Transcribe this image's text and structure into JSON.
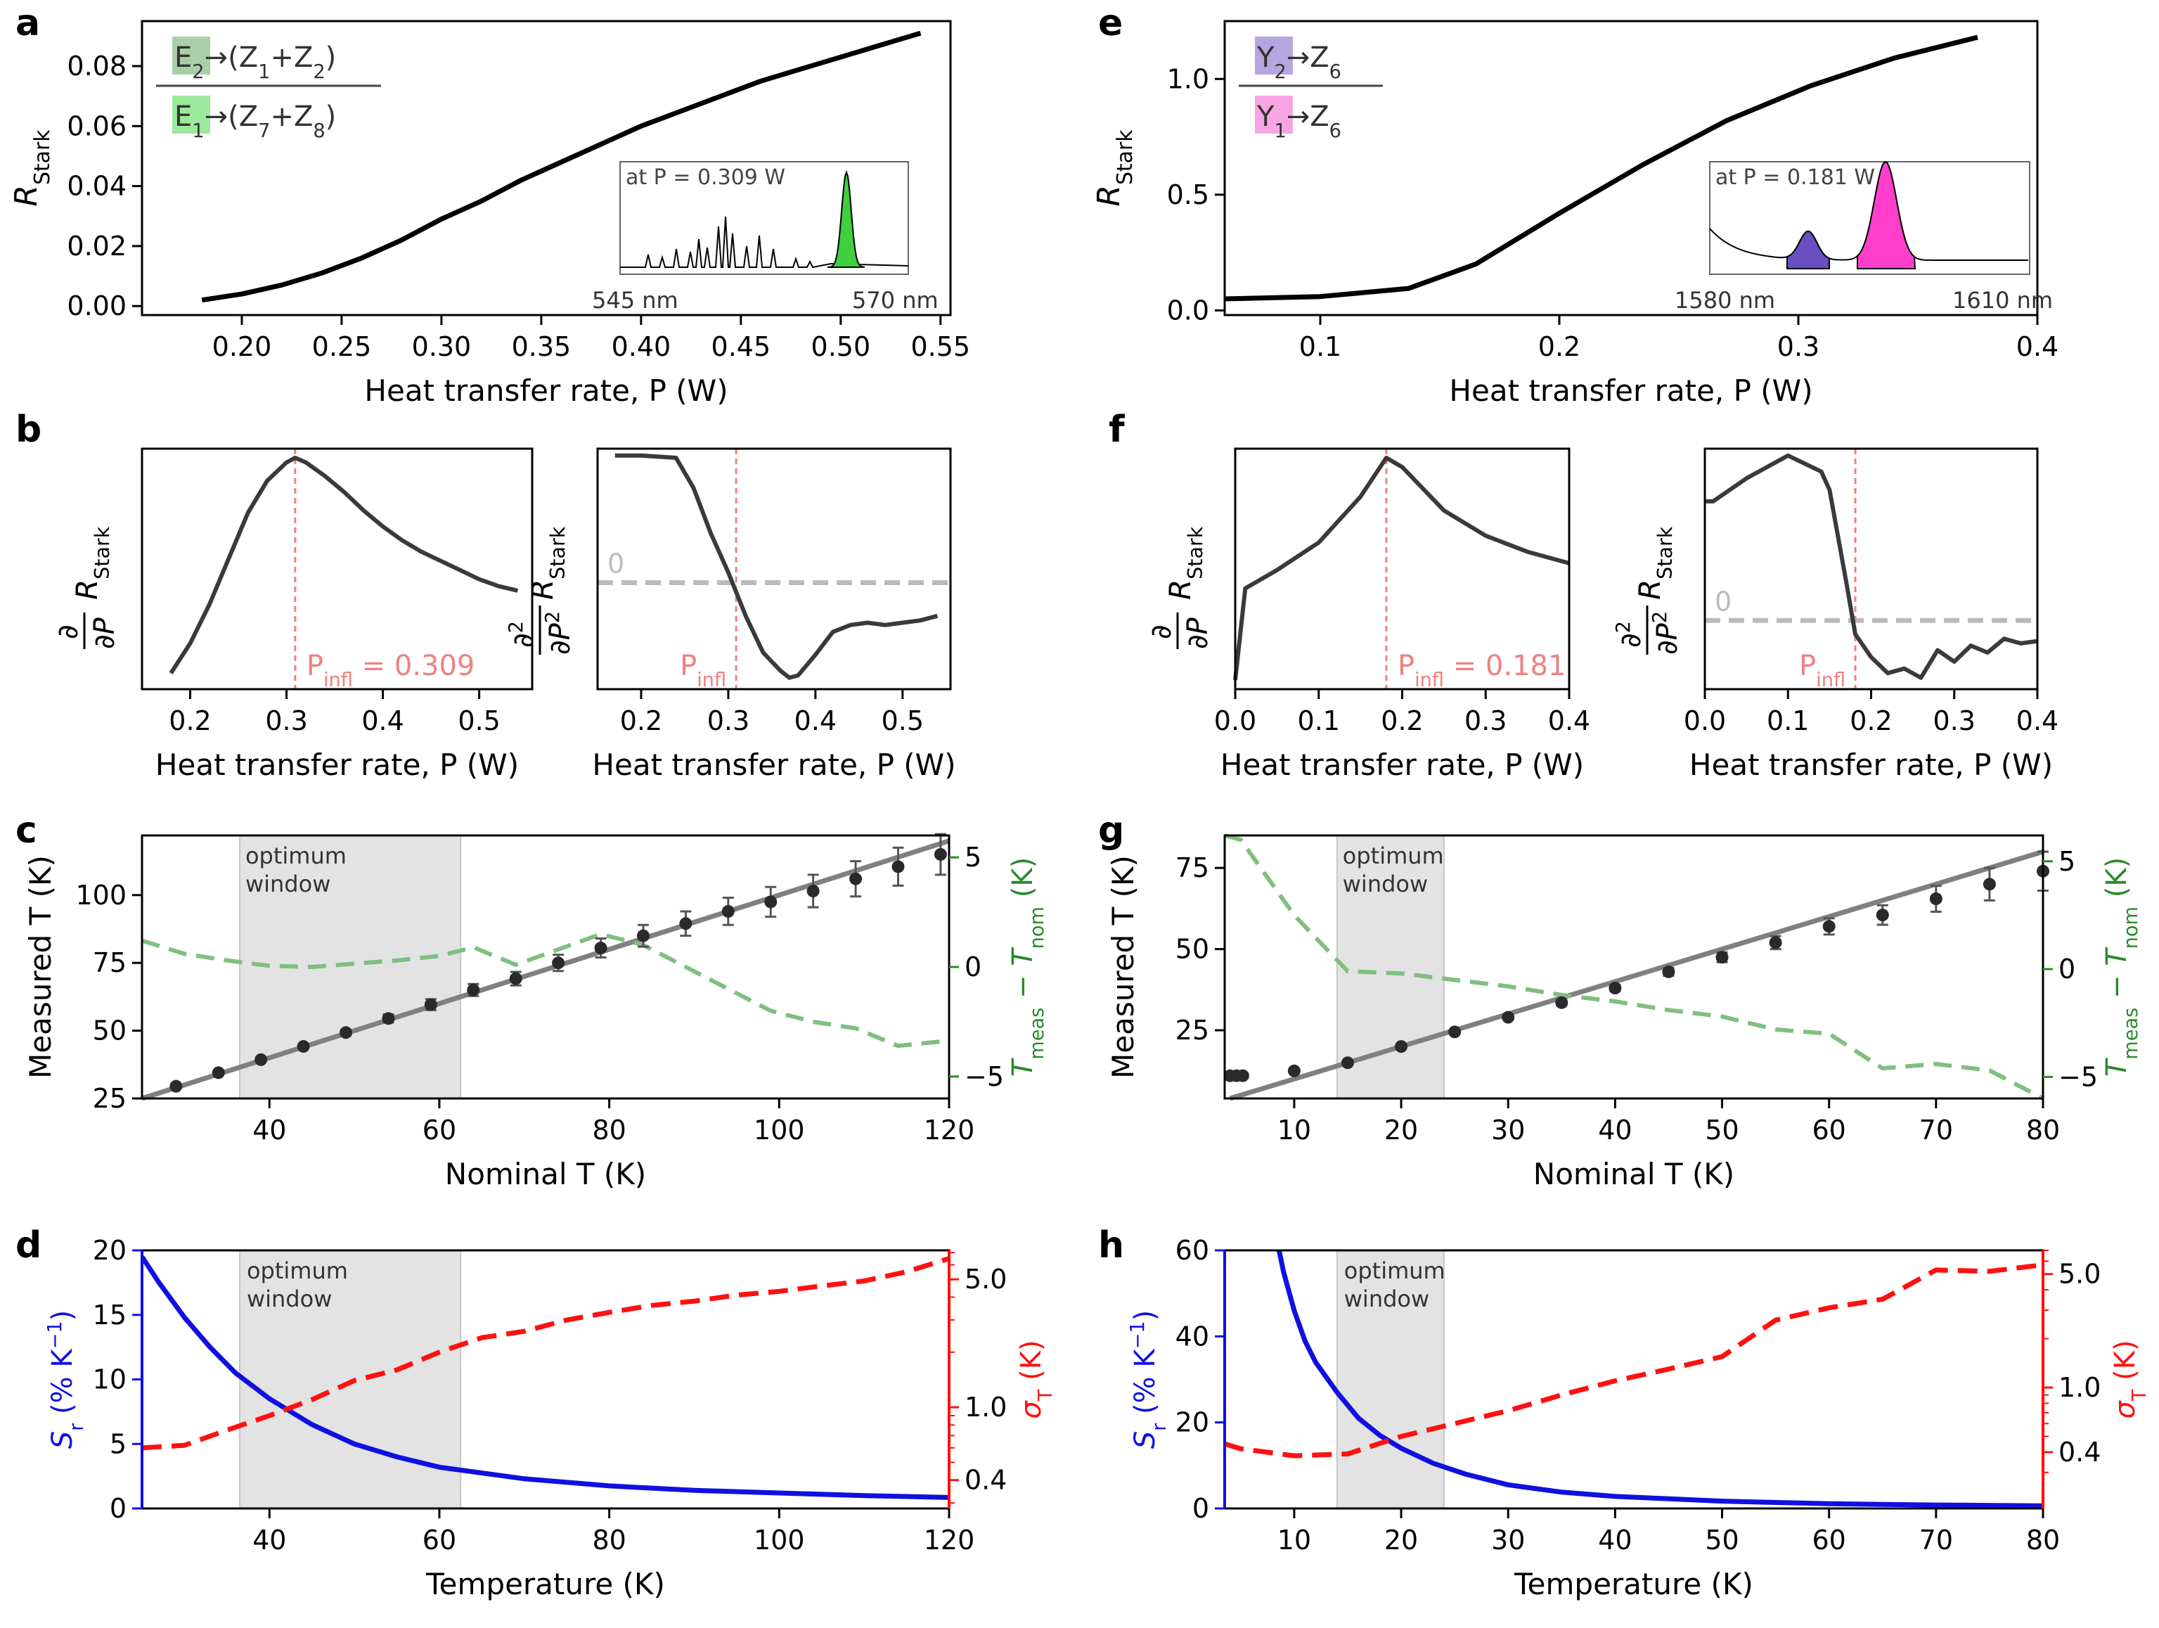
{
  "chart_data": [
    {
      "id": "a",
      "panel_label": "a",
      "type": "line",
      "xlabel": "Heat transfer rate, P (W)",
      "ylabel": "R",
      "ylabel_sub": "Stark",
      "xlim": [
        0.15,
        0.555
      ],
      "ylim": [
        -0.003,
        0.095
      ],
      "xticks": [
        0.2,
        0.25,
        0.3,
        0.35,
        0.4,
        0.45,
        0.5,
        0.55
      ],
      "xtick_labels": [
        "0.20",
        "0.25",
        "0.30",
        "0.35",
        "0.40",
        "0.45",
        "0.50",
        "0.55"
      ],
      "yticks": [
        0,
        0.02,
        0.04,
        0.06,
        0.08
      ],
      "ytick_labels": [
        "0.00",
        "0.02",
        "0.04",
        "0.06",
        "0.08"
      ],
      "x": [
        0.18,
        0.2,
        0.22,
        0.24,
        0.26,
        0.28,
        0.3,
        0.32,
        0.34,
        0.36,
        0.38,
        0.4,
        0.42,
        0.44,
        0.46,
        0.48,
        0.5,
        0.52,
        0.54
      ],
      "y": [
        0.002,
        0.004,
        0.007,
        0.011,
        0.016,
        0.022,
        0.029,
        0.035,
        0.042,
        0.048,
        0.054,
        0.06,
        0.065,
        0.07,
        0.075,
        0.079,
        0.083,
        0.087,
        0.091
      ],
      "legend": {
        "num_state": "E",
        "num_sub": "2",
        "num_rest": "→(Z",
        "num_a": "1",
        "num_plus": "+Z",
        "num_b": "2",
        "num_close": ")",
        "den_state": "E",
        "den_sub": "1",
        "den_rest": "→(Z",
        "den_a": "7",
        "den_plus": "+Z",
        "den_b": "8",
        "den_close": ")",
        "num_color": "#a9cfa9",
        "den_color": "#9ce89c"
      },
      "inset": {
        "title": "at P = 0.309 W",
        "left_label": "545 nm",
        "right_label": "570 nm",
        "fill": "#3fcf3f"
      }
    },
    {
      "id": "b1",
      "panel_label": "b",
      "type": "line",
      "xlabel": "Heat transfer rate, P (W)",
      "ylabel": "∂/∂P R_Stark",
      "xlim": [
        0.15,
        0.555
      ],
      "xticks": [
        0.2,
        0.3,
        0.4,
        0.5
      ],
      "xtick_labels": [
        "0.2",
        "0.3",
        "0.4",
        "0.5"
      ],
      "x": [
        0.18,
        0.2,
        0.22,
        0.24,
        0.26,
        0.28,
        0.3,
        0.309,
        0.32,
        0.34,
        0.36,
        0.38,
        0.4,
        0.42,
        0.44,
        0.46,
        0.48,
        0.5,
        0.52,
        0.54
      ],
      "y": [
        0.05,
        0.18,
        0.35,
        0.55,
        0.75,
        0.89,
        0.97,
        0.99,
        0.97,
        0.91,
        0.84,
        0.76,
        0.69,
        0.63,
        0.58,
        0.54,
        0.5,
        0.46,
        0.43,
        0.41
      ],
      "inflection": 0.309,
      "inflection_label": "P",
      "inflection_sub": "infl",
      "inflection_value": " = 0.309"
    },
    {
      "id": "b2",
      "panel_label": "",
      "type": "line",
      "xlabel": "Heat transfer rate, P (W)",
      "ylabel": "∂²/∂P² R_Stark",
      "xlim": [
        0.15,
        0.555
      ],
      "xticks": [
        0.2,
        0.3,
        0.4,
        0.5
      ],
      "xtick_labels": [
        "0.2",
        "0.3",
        "0.4",
        "0.5"
      ],
      "x": [
        0.17,
        0.2,
        0.24,
        0.26,
        0.28,
        0.3,
        0.32,
        0.34,
        0.36,
        0.37,
        0.38,
        0.4,
        0.42,
        0.44,
        0.46,
        0.48,
        0.5,
        0.52,
        0.54
      ],
      "y": [
        1.0,
        1.0,
        0.99,
        0.86,
        0.66,
        0.49,
        0.3,
        0.14,
        0.06,
        0.03,
        0.04,
        0.13,
        0.23,
        0.26,
        0.27,
        0.26,
        0.27,
        0.28,
        0.3
      ],
      "zero_level": 0.445,
      "zero_label": "0",
      "inflection": 0.309,
      "inflection_label": "P",
      "inflection_sub": "infl"
    },
    {
      "id": "c",
      "panel_label": "c",
      "type": "scatter",
      "xlabel": "Nominal T (K)",
      "ylabel": "Measured T (K)",
      "y2label": "T_meas − T_nom (K)",
      "xlim": [
        25,
        120
      ],
      "ylim": [
        25,
        122
      ],
      "y2lim": [
        -6,
        6
      ],
      "xticks": [
        40,
        60,
        80,
        100,
        120
      ],
      "xtick_labels": [
        "40",
        "60",
        "80",
        "100",
        "120"
      ],
      "yticks": [
        25,
        50,
        75,
        100
      ],
      "ytick_labels": [
        "25",
        "50",
        "75",
        "100"
      ],
      "y2ticks": [
        -5,
        0,
        5
      ],
      "y2tick_labels": [
        "−5",
        "0",
        "5"
      ],
      "window": [
        36.5,
        62.5
      ],
      "window_label": [
        "optimum",
        "window"
      ],
      "x": [
        29,
        34,
        39,
        44,
        49,
        54,
        59,
        64,
        69,
        74,
        79,
        84,
        89,
        94,
        99,
        104,
        109,
        114,
        119
      ],
      "y": [
        29.5,
        34.5,
        39.3,
        44.2,
        49.3,
        54.5,
        59.6,
        65,
        69.2,
        75,
        80.5,
        85,
        89.5,
        94,
        97.5,
        101.5,
        106,
        110.5,
        115
      ],
      "err": [
        0.5,
        0.5,
        0.6,
        0.7,
        1.0,
        1.5,
        2.0,
        2.2,
        2.5,
        3,
        3.5,
        4,
        4.5,
        5,
        5.5,
        6,
        6.5,
        7,
        7.5
      ],
      "diff_x": [
        25,
        30,
        35,
        40,
        45,
        50,
        55,
        60,
        64,
        69,
        74,
        79,
        84,
        89,
        94,
        99,
        104,
        109,
        114,
        119
      ],
      "diff_y": [
        1.2,
        0.6,
        0.3,
        0.05,
        0.0,
        0.15,
        0.3,
        0.5,
        0.9,
        0.1,
        0.8,
        1.5,
        1.0,
        0.0,
        -1.0,
        -2.0,
        -2.5,
        -2.8,
        -3.6,
        -3.4
      ]
    },
    {
      "id": "d",
      "panel_label": "d",
      "type": "line",
      "xlabel": "Temperature (K)",
      "ylabel": "S_r (% K⁻¹)",
      "y2label": "σ_T (K)",
      "xlim": [
        25,
        120
      ],
      "ylim": [
        0,
        20
      ],
      "y2log": [
        0.28,
        7.2
      ],
      "xticks": [
        40,
        60,
        80,
        100,
        120
      ],
      "xtick_labels": [
        "40",
        "60",
        "80",
        "100",
        "120"
      ],
      "yticks": [
        0,
        5,
        10,
        15,
        20
      ],
      "ytick_labels": [
        "0",
        "5",
        "10",
        "15",
        "20"
      ],
      "y2ticks": [
        0.4,
        1.0,
        5.0
      ],
      "y2tick_labels": [
        "0.4",
        "1.0",
        "5.0"
      ],
      "window": [
        36.5,
        62.5
      ],
      "window_label": [
        "optimum",
        "window"
      ],
      "sr_x": [
        25,
        27,
        30,
        33,
        36,
        40,
        45,
        50,
        55,
        60,
        70,
        80,
        90,
        100,
        110,
        120
      ],
      "sr_y": [
        19.5,
        17.5,
        14.8,
        12.5,
        10.5,
        8.5,
        6.5,
        5.0,
        4.0,
        3.2,
        2.3,
        1.75,
        1.4,
        1.2,
        1.0,
        0.85
      ],
      "sigma_x": [
        25,
        30,
        35,
        40,
        45,
        50,
        55,
        60,
        65,
        70,
        75,
        80,
        85,
        90,
        95,
        100,
        105,
        110,
        115,
        120
      ],
      "sigma_y": [
        0.6,
        0.62,
        0.75,
        0.9,
        1.1,
        1.4,
        1.6,
        2.0,
        2.4,
        2.6,
        3.0,
        3.3,
        3.6,
        3.8,
        4.1,
        4.3,
        4.6,
        4.9,
        5.5,
        6.5
      ]
    },
    {
      "id": "e",
      "panel_label": "e",
      "type": "line",
      "xlabel": "Heat transfer rate, P (W)",
      "ylabel": "R",
      "ylabel_sub": "Stark",
      "xlim": [
        0.06,
        0.4
      ],
      "ylim": [
        -0.02,
        1.25
      ],
      "xticks": [
        0.1,
        0.2,
        0.3,
        0.4
      ],
      "xtick_labels": [
        "0.1",
        "0.2",
        "0.3",
        "0.4"
      ],
      "yticks": [
        0,
        0.5,
        1.0
      ],
      "ytick_labels": [
        "0.0",
        "0.5",
        "1.0"
      ],
      "x": [
        0.06,
        0.1,
        0.137,
        0.165,
        0.2,
        0.235,
        0.27,
        0.305,
        0.34,
        0.375
      ],
      "y": [
        0.05,
        0.06,
        0.095,
        0.2,
        0.42,
        0.63,
        0.82,
        0.97,
        1.09,
        1.18
      ],
      "legend": {
        "num_state": "Y",
        "num_sub": "2",
        "num_rest": "→Z",
        "num_a": "6",
        "den_state": "Y",
        "den_sub": "1",
        "den_rest": "→Z",
        "den_a": "6",
        "num_color": "#b5a6e0",
        "den_color": "#f7a6e3"
      },
      "inset": {
        "title": "at P = 0.181 W",
        "left_label": "1580 nm",
        "right_label": "1610 nm",
        "fill_a": "#6a4fc0",
        "fill_b": "#ff3fcc"
      }
    },
    {
      "id": "f1",
      "panel_label": "f",
      "type": "line",
      "xlabel": "Heat transfer rate, P (W)",
      "ylabel": "∂/∂P R_Stark",
      "xlim": [
        0.0,
        0.4
      ],
      "xticks": [
        0,
        0.1,
        0.2,
        0.3,
        0.4
      ],
      "xtick_labels": [
        "0.0",
        "0.1",
        "0.2",
        "0.3",
        "0.4"
      ],
      "x": [
        0.0,
        0.012,
        0.05,
        0.1,
        0.15,
        0.181,
        0.2,
        0.25,
        0.3,
        0.35,
        0.4
      ],
      "y": [
        0.02,
        0.42,
        0.5,
        0.62,
        0.82,
        0.99,
        0.95,
        0.76,
        0.65,
        0.58,
        0.53
      ],
      "inflection": 0.181,
      "inflection_label": "P",
      "inflection_sub": "infl",
      "inflection_value": " = 0.181"
    },
    {
      "id": "f2",
      "panel_label": "",
      "type": "line",
      "xlabel": "Heat transfer rate, P (W)",
      "ylabel": "∂²/∂P² R_Stark",
      "xlim": [
        0.0,
        0.4
      ],
      "xticks": [
        0,
        0.1,
        0.2,
        0.3,
        0.4
      ],
      "xtick_labels": [
        "0.0",
        "0.1",
        "0.2",
        "0.3",
        "0.4"
      ],
      "x": [
        0.0,
        0.01,
        0.05,
        0.1,
        0.14,
        0.15,
        0.17,
        0.181,
        0.2,
        0.22,
        0.24,
        0.26,
        0.28,
        0.3,
        0.32,
        0.34,
        0.36,
        0.38,
        0.4
      ],
      "y": [
        0.8,
        0.8,
        0.9,
        1.0,
        0.93,
        0.85,
        0.45,
        0.22,
        0.12,
        0.05,
        0.07,
        0.03,
        0.15,
        0.1,
        0.17,
        0.14,
        0.2,
        0.18,
        0.19
      ],
      "zero_level": 0.28,
      "zero_label": "0",
      "inflection": 0.181,
      "inflection_label": "P",
      "inflection_sub": "infl"
    },
    {
      "id": "g",
      "panel_label": "g",
      "type": "scatter",
      "xlabel": "Nominal T (K)",
      "ylabel": "Measured T (K)",
      "y2label": "T_meas − T_nom (K)",
      "xlim": [
        3.5,
        80
      ],
      "ylim": [
        4,
        85
      ],
      "y2lim": [
        -6,
        6.2
      ],
      "xticks": [
        10,
        20,
        30,
        40,
        50,
        60,
        70,
        80
      ],
      "xtick_labels": [
        "10",
        "20",
        "30",
        "40",
        "50",
        "60",
        "70",
        "80"
      ],
      "yticks": [
        25,
        50,
        75
      ],
      "ytick_labels": [
        "25",
        "50",
        "75"
      ],
      "y2ticks": [
        -5,
        0,
        5
      ],
      "y2tick_labels": [
        "−5",
        "0",
        "5"
      ],
      "window": [
        14,
        24
      ],
      "window_label": [
        "optimum",
        "window"
      ],
      "x": [
        4,
        4.6,
        5.2,
        10,
        15,
        20,
        25,
        30,
        35,
        40,
        45,
        50,
        55,
        60,
        65,
        70,
        75,
        80
      ],
      "y": [
        11,
        11,
        11,
        12.5,
        15,
        20,
        24.5,
        29,
        33.5,
        38,
        43,
        47.5,
        52,
        57,
        60.5,
        65.5,
        70,
        74
      ],
      "err": [
        0.5,
        0.5,
        0.5,
        0.5,
        0.5,
        0.5,
        0.5,
        0.6,
        0.8,
        1,
        1.2,
        1.5,
        2,
        2.5,
        3,
        4,
        5,
        6
      ],
      "diff_x": [
        3.5,
        5,
        10,
        15,
        20,
        25,
        30,
        35,
        40,
        45,
        50,
        55,
        60,
        65,
        70,
        75,
        80
      ],
      "diff_y": [
        7.0,
        6.0,
        2.5,
        -0.1,
        -0.2,
        -0.5,
        -0.8,
        -1.2,
        -1.5,
        -1.9,
        -2.2,
        -2.8,
        -3.0,
        -4.6,
        -4.4,
        -4.7,
        -6.0
      ]
    },
    {
      "id": "h",
      "panel_label": "h",
      "type": "line",
      "xlabel": "Temperature (K)",
      "ylabel": "S_r (% K⁻¹)",
      "y2label": "σ_T (K)",
      "xlim": [
        3.5,
        80
      ],
      "ylim": [
        0,
        60
      ],
      "y2log": [
        0.18,
        7.0
      ],
      "xticks": [
        10,
        20,
        30,
        40,
        50,
        60,
        70,
        80
      ],
      "xtick_labels": [
        "10",
        "20",
        "30",
        "40",
        "50",
        "60",
        "70",
        "80"
      ],
      "yticks": [
        0,
        20,
        40,
        60
      ],
      "ytick_labels": [
        "0",
        "20",
        "40",
        "60"
      ],
      "y2ticks": [
        0.4,
        1.0,
        5.0
      ],
      "y2tick_labels": [
        "0.4",
        "1.0",
        "5.0"
      ],
      "window": [
        14,
        24
      ],
      "window_label": [
        "optimum",
        "window"
      ],
      "sr_x": [
        8.5,
        9,
        10,
        11,
        12,
        14,
        16,
        18,
        20,
        23,
        26,
        30,
        35,
        40,
        50,
        60,
        70,
        80
      ],
      "sr_y": [
        61,
        55,
        46,
        39,
        34,
        27,
        21,
        17,
        14,
        10.5,
        8,
        5.5,
        3.8,
        2.8,
        1.7,
        1.1,
        0.8,
        0.6
      ],
      "sigma_x": [
        3.5,
        5,
        10,
        15,
        20,
        25,
        30,
        35,
        40,
        45,
        50,
        55,
        60,
        65,
        70,
        75,
        80
      ],
      "sigma_y": [
        0.45,
        0.42,
        0.38,
        0.39,
        0.5,
        0.6,
        0.72,
        0.9,
        1.1,
        1.3,
        1.55,
        2.6,
        3.1,
        3.5,
        5.3,
        5.2,
        5.7
      ]
    }
  ]
}
